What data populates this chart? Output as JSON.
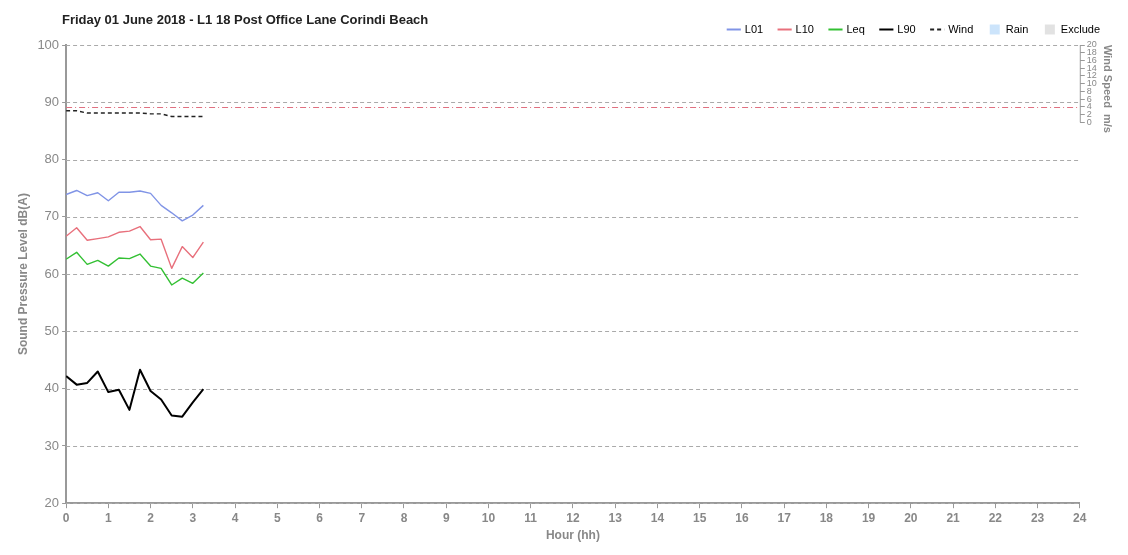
{
  "chart_data": {
    "type": "line",
    "title": "Friday 01 June 2018 - L1 18 Post Office Lane Corindi Beach",
    "xlabel": "Hour (hh)",
    "ylabel": "Sound Pressure Level dB(A)",
    "y2label": "Wind Speed  m/s",
    "x": [
      0,
      0.25,
      0.5,
      0.75,
      1,
      1.25,
      1.5,
      1.75,
      2,
      2.25,
      2.5,
      2.75,
      3,
      3.25
    ],
    "series": [
      {
        "name": "L01",
        "color": "#8094e6",
        "values": [
          73.9,
          74.6,
          73.7,
          74.2,
          72.8,
          74.3,
          74.3,
          74.5,
          74.1,
          72.0,
          70.7,
          69.3,
          70.3,
          72.0
        ]
      },
      {
        "name": "L10",
        "color": "#e8707c",
        "values": [
          66.6,
          68.1,
          65.9,
          66.2,
          66.5,
          67.3,
          67.5,
          68.3,
          66.0,
          66.1,
          61.0,
          64.8,
          62.9,
          65.6
        ]
      },
      {
        "name": "Leq",
        "color": "#33c033",
        "values": [
          62.6,
          63.8,
          61.7,
          62.4,
          61.4,
          62.8,
          62.7,
          63.5,
          61.4,
          61.0,
          58.1,
          59.3,
          58.4,
          60.2
        ]
      },
      {
        "name": "L90",
        "color": "#000000",
        "values": [
          42.2,
          40.7,
          41.0,
          43.0,
          39.4,
          39.8,
          36.3,
          43.3,
          39.6,
          38.1,
          35.3,
          35.1,
          37.6,
          39.9
        ]
      },
      {
        "name": "Wind",
        "color": "#222222",
        "axis": "y2",
        "line_style": "dashed",
        "values": [
          3.0,
          3.0,
          2.4,
          2.4,
          2.4,
          2.4,
          2.4,
          2.4,
          2.2,
          2.2,
          1.5,
          1.5,
          1.5,
          1.5
        ]
      },
      {
        "name": "Rain",
        "type": "area",
        "color": "#cce4fb",
        "values": [
          null,
          null,
          null,
          null,
          null,
          null,
          null,
          null,
          null,
          null,
          null,
          null,
          null,
          null
        ]
      },
      {
        "name": "Exclude",
        "type": "area",
        "color": "#e2e2e2",
        "values": [
          null,
          null,
          null,
          null,
          null,
          null,
          null,
          null,
          null,
          null,
          null,
          null,
          null,
          null
        ]
      }
    ],
    "xlim": [
      0,
      24
    ],
    "xticks": [
      0,
      1,
      2,
      3,
      4,
      5,
      6,
      7,
      8,
      9,
      10,
      11,
      12,
      13,
      14,
      15,
      16,
      17,
      18,
      19,
      20,
      21,
      22,
      23,
      24
    ],
    "ylim": [
      20,
      100
    ],
    "yticks": [
      20,
      30,
      40,
      50,
      60,
      70,
      80,
      90,
      100
    ],
    "y2lim": [
      -98.5,
      20
    ],
    "y2ticks": [
      0,
      2,
      4,
      6,
      8,
      10,
      12,
      14,
      16,
      18,
      20
    ],
    "ref_lines": [
      {
        "axis": "y2",
        "value": 4,
        "color": "#e07080",
        "line_style": "dashdot"
      }
    ],
    "grid": "y",
    "legend": "top right",
    "marker": "none"
  }
}
